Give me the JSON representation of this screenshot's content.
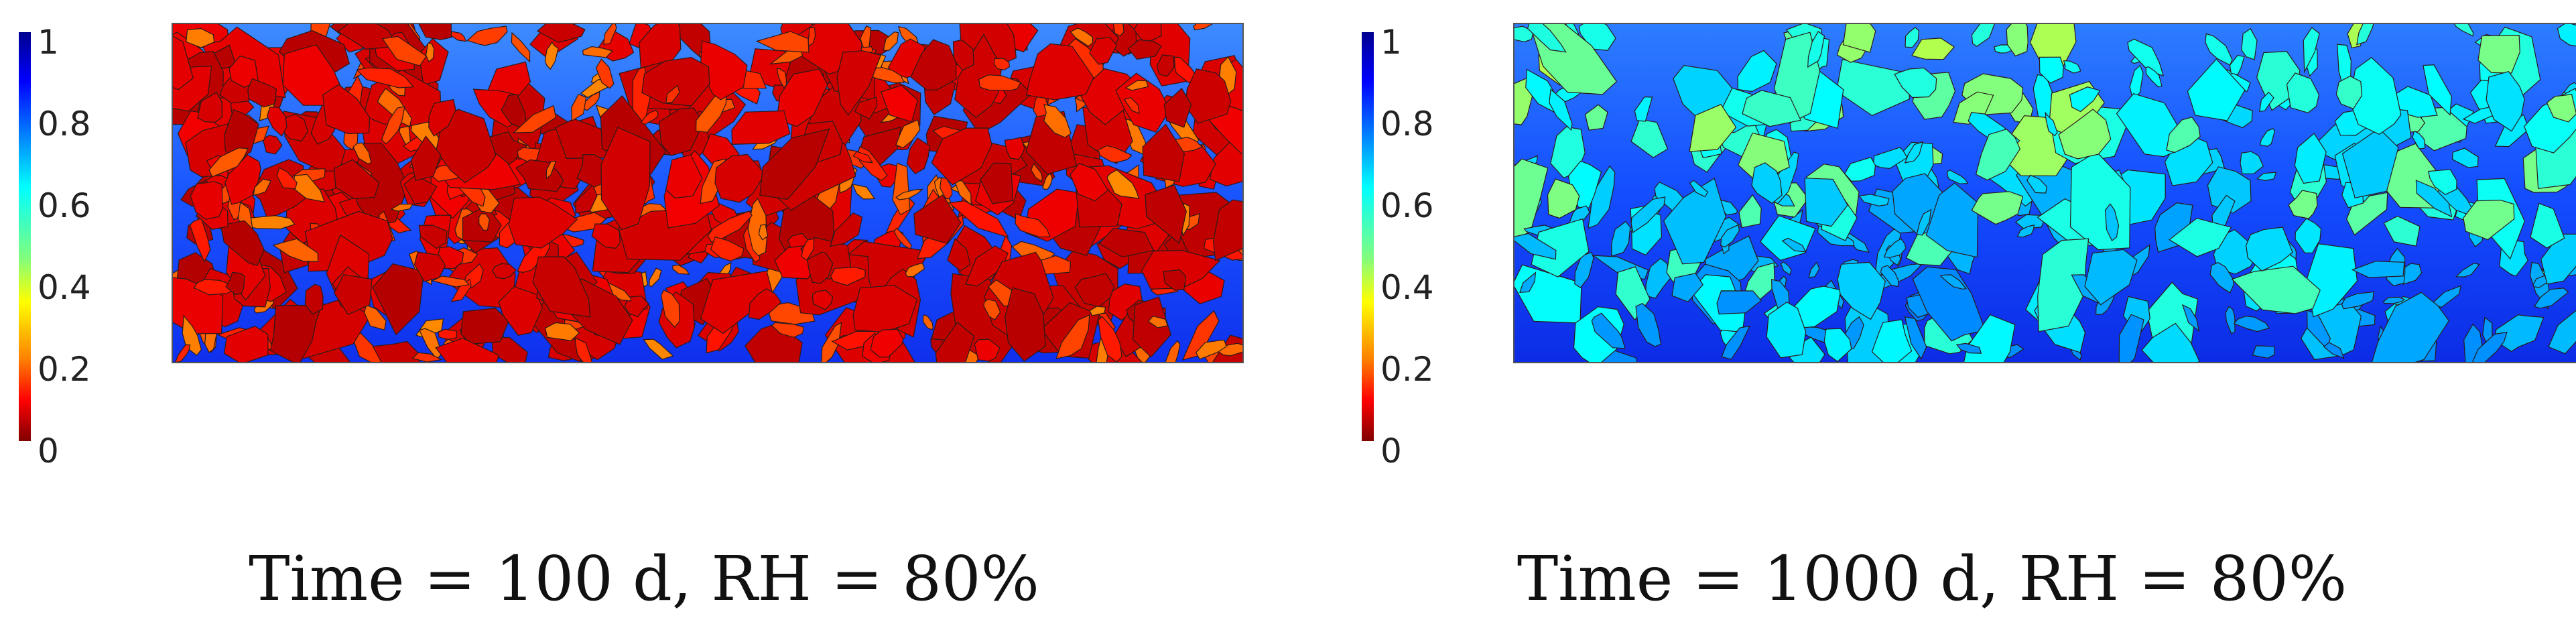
{
  "colorbar": {
    "ticks": [
      "1",
      "0.8",
      "0.6",
      "0.4",
      "0.2",
      "0"
    ],
    "colors": [
      "#00008f",
      "#0000ff",
      "#00ffff",
      "#ffff00",
      "#ff0000",
      "#800000"
    ]
  },
  "panels": [
    {
      "caption": "Time = 100 d, RH = 80%",
      "aggregate_value": 0.05,
      "matrix_colors": [
        "#3d8bff",
        "#1a55ff",
        "#0f30ee"
      ]
    },
    {
      "caption": "Time = 1000 d, RH = 80%",
      "aggregate_value": 0.62,
      "matrix_colors": [
        "#2d7dff",
        "#144dff",
        "#0c2ce6"
      ]
    }
  ]
}
